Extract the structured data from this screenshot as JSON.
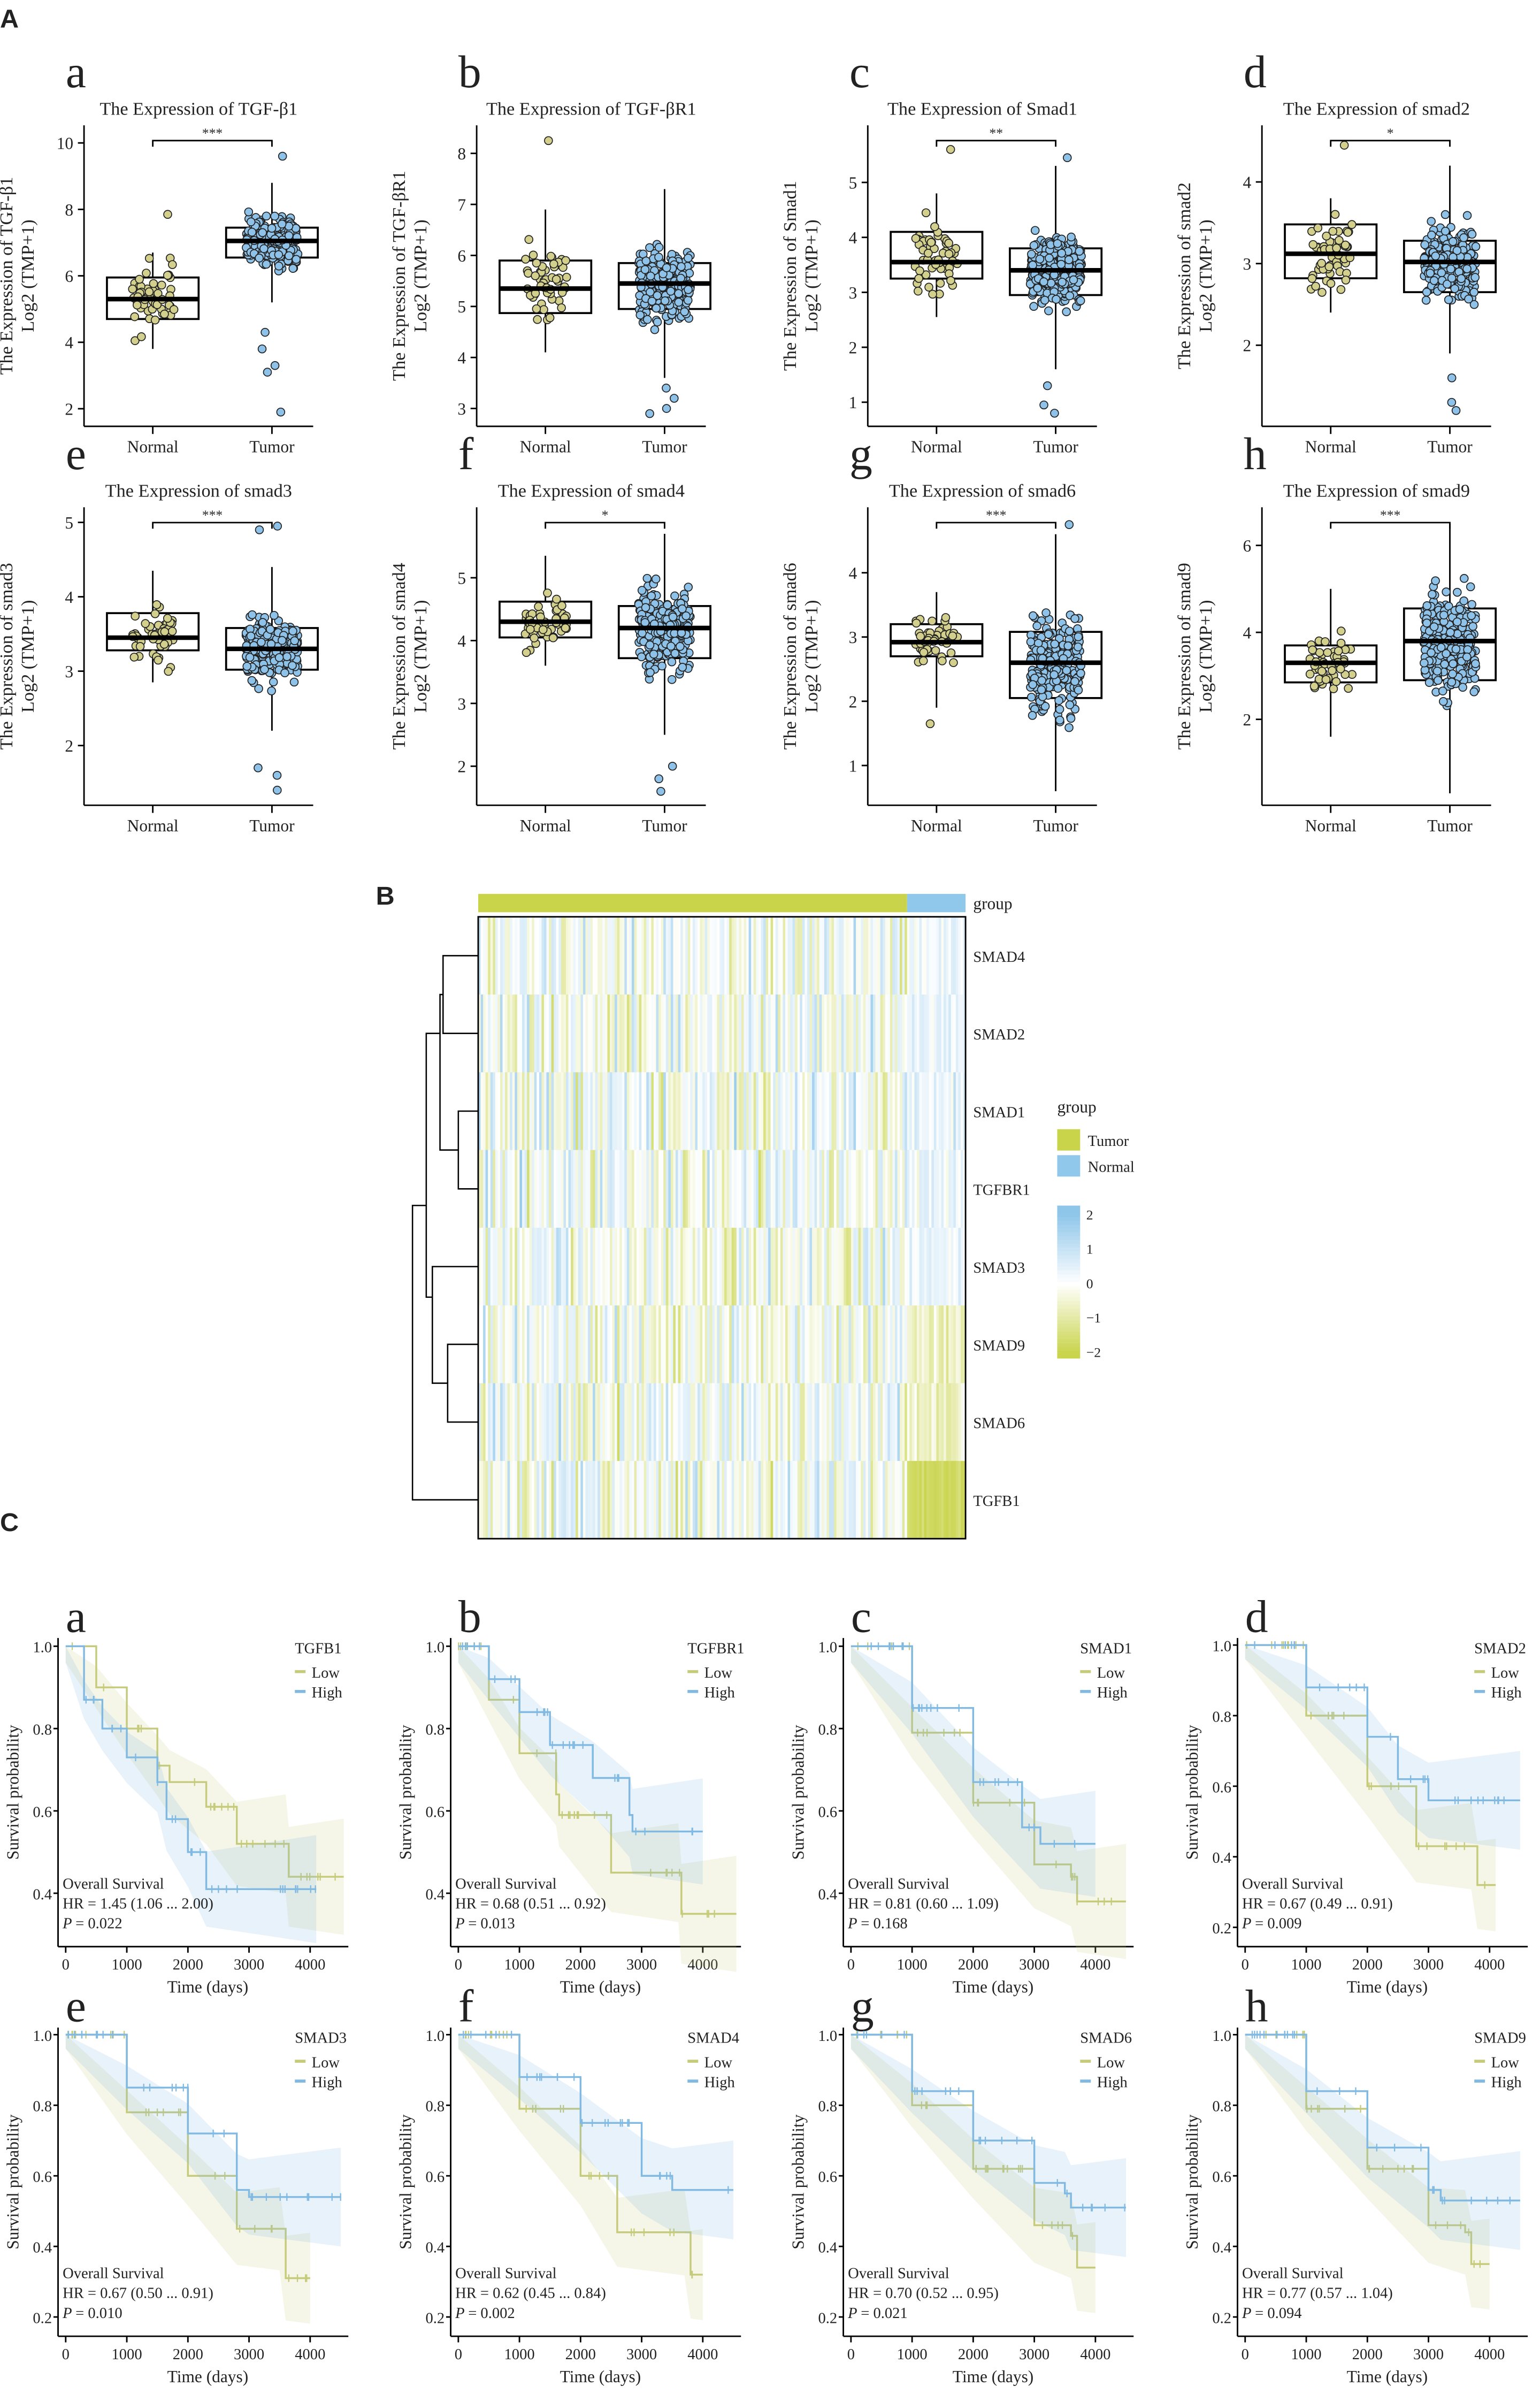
{
  "section_labels": {
    "A": "A",
    "B": "B",
    "C": "C"
  },
  "chart_data": [
    {
      "type": "box",
      "panel": "A",
      "categories": [
        "Normal",
        "Tumor"
      ],
      "colors": {
        "Normal": "#d2d08c",
        "Tumor": "#8ec2e8"
      },
      "ylabel_line1": "The  Expression  of",
      "ylabel_line2": "Log2 (TMP+1)",
      "plots": [
        {
          "letter": "a",
          "title": "The Expression of TGF-β1",
          "gene": "TGF-β1",
          "sig": "***",
          "yticks": [
            2,
            4,
            6,
            8,
            10
          ],
          "ylim": [
            1.7,
            10.3
          ],
          "normal": {
            "q1": 4.7,
            "median": 5.3,
            "q3": 5.95,
            "low": 3.8,
            "high": 6.7,
            "outliers": [
              7.85
            ]
          },
          "tumor": {
            "q1": 6.55,
            "median": 7.05,
            "q3": 7.45,
            "low": 5.2,
            "high": 8.8,
            "outliers": [
              1.9,
              3.1,
              3.3,
              3.8,
              4.3,
              9.6
            ]
          }
        },
        {
          "letter": "b",
          "title": "The Expression of TGF-βR1",
          "gene": "TGF-βR1",
          "sig": "",
          "yticks": [
            3,
            4,
            5,
            6,
            7,
            8
          ],
          "ylim": [
            2.8,
            8.4
          ],
          "normal": {
            "q1": 4.87,
            "median": 5.35,
            "q3": 5.9,
            "low": 4.1,
            "high": 6.9,
            "outliers": [
              8.25
            ]
          },
          "tumor": {
            "q1": 4.95,
            "median": 5.45,
            "q3": 5.85,
            "low": 3.6,
            "high": 7.3,
            "outliers": [
              2.9,
              3.0,
              3.2,
              3.4
            ]
          }
        },
        {
          "letter": "c",
          "title": "The Expression of Smad1",
          "gene": "Smad1",
          "sig": "**",
          "yticks": [
            1,
            2,
            3,
            4,
            5
          ],
          "ylim": [
            0.7,
            5.9
          ],
          "normal": {
            "q1": 3.25,
            "median": 3.55,
            "q3": 4.1,
            "low": 2.55,
            "high": 4.8,
            "outliers": [
              5.6
            ]
          },
          "tumor": {
            "q1": 2.95,
            "median": 3.4,
            "q3": 3.8,
            "low": 1.6,
            "high": 5.3,
            "outliers": [
              0.8,
              0.95,
              1.3,
              5.45
            ]
          }
        },
        {
          "letter": "d",
          "title": "The Expression of smad2",
          "gene": "smad2",
          "sig": "*",
          "yticks": [
            2,
            3,
            4
          ],
          "ylim": [
            1.1,
            4.6
          ],
          "normal": {
            "q1": 2.82,
            "median": 3.12,
            "q3": 3.48,
            "low": 2.4,
            "high": 3.8,
            "outliers": [
              4.45
            ]
          },
          "tumor": {
            "q1": 2.65,
            "median": 3.02,
            "q3": 3.28,
            "low": 1.9,
            "high": 4.2,
            "outliers": [
              1.2,
              1.3,
              1.6
            ]
          }
        },
        {
          "letter": "e",
          "title": "The Expression of smad3",
          "gene": "smad3",
          "sig": "***",
          "yticks": [
            2,
            3,
            4,
            5
          ],
          "ylim": [
            1.3,
            5.1
          ],
          "normal": {
            "q1": 3.28,
            "median": 3.45,
            "q3": 3.78,
            "low": 2.85,
            "high": 4.35,
            "outliers": []
          },
          "tumor": {
            "q1": 3.02,
            "median": 3.3,
            "q3": 3.58,
            "low": 2.2,
            "high": 4.4,
            "outliers": [
              1.4,
              1.6,
              1.7,
              4.9,
              4.95
            ]
          }
        },
        {
          "letter": "f",
          "title": "The Expression of smad4",
          "gene": "smad4",
          "sig": "*",
          "yticks": [
            2,
            3,
            4,
            5
          ],
          "ylim": [
            1.5,
            6.0
          ],
          "normal": {
            "q1": 4.05,
            "median": 4.3,
            "q3": 4.62,
            "low": 3.6,
            "high": 5.35,
            "outliers": []
          },
          "tumor": {
            "q1": 3.72,
            "median": 4.2,
            "q3": 4.55,
            "low": 2.5,
            "high": 5.7,
            "outliers": [
              1.6,
              1.8,
              2.0
            ]
          }
        },
        {
          "letter": "g",
          "title": "The Expression of smad6",
          "gene": "smad6",
          "sig": "***",
          "yticks": [
            1,
            2,
            3,
            4
          ],
          "ylim": [
            0.5,
            4.9
          ],
          "normal": {
            "q1": 2.7,
            "median": 2.92,
            "q3": 3.2,
            "low": 1.9,
            "high": 3.7,
            "outliers": [
              1.65
            ]
          },
          "tumor": {
            "q1": 2.05,
            "median": 2.6,
            "q3": 3.08,
            "low": 0.6,
            "high": 4.6,
            "outliers": [
              4.75
            ]
          }
        },
        {
          "letter": "h",
          "title": "The Expression of smad9",
          "gene": "smad9",
          "sig": "***",
          "yticks": [
            2,
            4,
            6
          ],
          "ylim": [
            0.2,
            6.7
          ],
          "normal": {
            "q1": 2.85,
            "median": 3.3,
            "q3": 3.7,
            "low": 1.6,
            "high": 5.0,
            "outliers": []
          },
          "tumor": {
            "q1": 2.9,
            "median": 3.8,
            "q3": 4.55,
            "low": 0.3,
            "high": 6.5,
            "outliers": []
          }
        }
      ]
    },
    {
      "type": "heatmap",
      "panel": "B",
      "rows": [
        "SMAD4",
        "SMAD2",
        "SMAD1",
        "TGFBR1",
        "SMAD3",
        "SMAD9",
        "SMAD6",
        "TGFB1"
      ],
      "group_label": "group",
      "legend_title": "group",
      "groups": [
        {
          "name": "Tumor",
          "color": "#c9d44b"
        },
        {
          "name": "Normal",
          "color": "#90c8ec"
        }
      ],
      "tumor_fraction": 0.88,
      "scale_ticks": [
        "2",
        "1",
        "0",
        "−1",
        "−2"
      ],
      "scale_range": [
        -2,
        2
      ],
      "scale_colors": {
        "low": "#c9d44b",
        "mid": "#ffffff",
        "high": "#8ec6ea"
      }
    },
    {
      "type": "line",
      "panel": "C",
      "xlabel": "Time (days)",
      "ylabel": "Survival probability",
      "xticks": [
        0,
        1000,
        2000,
        3000,
        4000
      ],
      "legend_items": [
        "Low",
        "High"
      ],
      "colors": {
        "Low": "#c6cb7c",
        "High": "#80b9e2"
      },
      "annotation_title": "Overall  Survival",
      "plots": [
        {
          "letter": "a",
          "gene": "TGFB1",
          "hr": "HR = 1.45  (1.06  ...  2.00)",
          "p": "= 0.022",
          "ylim": [
            0.3,
            1.02
          ],
          "yticks": [
            "0.4",
            "0.6",
            "0.8",
            "1.0"
          ],
          "low": [
            [
              0,
              1
            ],
            [
              500,
              0.9
            ],
            [
              1000,
              0.8
            ],
            [
              1500,
              0.71
            ],
            [
              1700,
              0.67
            ],
            [
              2300,
              0.61
            ],
            [
              2800,
              0.52
            ],
            [
              3600,
              0.52
            ],
            [
              3650,
              0.44
            ],
            [
              4550,
              0.44
            ]
          ],
          "high": [
            [
              0,
              1
            ],
            [
              300,
              0.87
            ],
            [
              600,
              0.8
            ],
            [
              1000,
              0.73
            ],
            [
              1500,
              0.67
            ],
            [
              1650,
              0.58
            ],
            [
              2000,
              0.5
            ],
            [
              2300,
              0.41
            ],
            [
              4100,
              0.41
            ]
          ]
        },
        {
          "letter": "b",
          "gene": "TGFBR1",
          "hr": "HR = 0.68  (0.51  ...  0.92)",
          "p": "= 0.013",
          "ylim": [
            0.3,
            1.02
          ],
          "yticks": [
            "0.4",
            "0.6",
            "0.8",
            "1.0"
          ],
          "low": [
            [
              0,
              1
            ],
            [
              500,
              0.87
            ],
            [
              1000,
              0.74
            ],
            [
              1600,
              0.64
            ],
            [
              1650,
              0.59
            ],
            [
              2500,
              0.45
            ],
            [
              3600,
              0.45
            ],
            [
              3650,
              0.35
            ],
            [
              4550,
              0.35
            ]
          ],
          "high": [
            [
              0,
              1
            ],
            [
              500,
              0.92
            ],
            [
              1000,
              0.84
            ],
            [
              1500,
              0.76
            ],
            [
              2200,
              0.68
            ],
            [
              2800,
              0.59
            ],
            [
              2850,
              0.55
            ],
            [
              4000,
              0.55
            ]
          ]
        },
        {
          "letter": "c",
          "gene": "SMAD1",
          "hr": "HR = 0.81  (0.60  ...  1.09)",
          "p": "= 0.168",
          "ylim": [
            0.3,
            1.02
          ],
          "yticks": [
            "0.4",
            "0.6",
            "0.8",
            "1.0"
          ],
          "low": [
            [
              0,
              1
            ],
            [
              1000,
              0.79
            ],
            [
              2000,
              0.62
            ],
            [
              3000,
              0.47
            ],
            [
              3600,
              0.44
            ],
            [
              3700,
              0.38
            ],
            [
              4500,
              0.38
            ]
          ],
          "high": [
            [
              0,
              1
            ],
            [
              1000,
              0.85
            ],
            [
              2000,
              0.67
            ],
            [
              2800,
              0.56
            ],
            [
              3100,
              0.52
            ],
            [
              4000,
              0.52
            ]
          ]
        },
        {
          "letter": "d",
          "gene": "SMAD2",
          "hr": "HR = 0.67  (0.49  ...  0.91)",
          "p": "= 0.009",
          "ylim": [
            0.18,
            1.02
          ],
          "yticks": [
            "0.2",
            "0.4",
            "0.6",
            "0.8",
            "1.0"
          ],
          "low": [
            [
              0,
              1
            ],
            [
              1000,
              0.8
            ],
            [
              2000,
              0.6
            ],
            [
              2800,
              0.43
            ],
            [
              3700,
              0.43
            ],
            [
              3800,
              0.32
            ],
            [
              4100,
              0.32
            ]
          ],
          "high": [
            [
              0,
              1
            ],
            [
              1000,
              0.88
            ],
            [
              2000,
              0.74
            ],
            [
              2500,
              0.62
            ],
            [
              3000,
              0.56
            ],
            [
              4500,
              0.56
            ]
          ]
        },
        {
          "letter": "e",
          "gene": "SMAD3",
          "hr": "HR = 0.67  (0.50  ...  0.91)",
          "p": "= 0.010",
          "ylim": [
            0.18,
            1.02
          ],
          "yticks": [
            "0.2",
            "0.4",
            "0.6",
            "0.8",
            "1.0"
          ],
          "low": [
            [
              0,
              1
            ],
            [
              1000,
              0.78
            ],
            [
              2000,
              0.6
            ],
            [
              2800,
              0.45
            ],
            [
              3500,
              0.45
            ],
            [
              3600,
              0.31
            ],
            [
              4000,
              0.31
            ]
          ],
          "high": [
            [
              0,
              1
            ],
            [
              1000,
              0.85
            ],
            [
              2000,
              0.72
            ],
            [
              2800,
              0.56
            ],
            [
              3000,
              0.54
            ],
            [
              4500,
              0.54
            ]
          ]
        },
        {
          "letter": "f",
          "gene": "SMAD4",
          "hr": "HR = 0.62  (0.45  ...  0.84)",
          "p": "= 0.002",
          "ylim": [
            0.18,
            1.02
          ],
          "yticks": [
            "0.2",
            "0.4",
            "0.6",
            "0.8",
            "1.0"
          ],
          "low": [
            [
              0,
              1
            ],
            [
              1000,
              0.79
            ],
            [
              2000,
              0.6
            ],
            [
              2600,
              0.44
            ],
            [
              3700,
              0.44
            ],
            [
              3800,
              0.32
            ],
            [
              4000,
              0.32
            ]
          ],
          "high": [
            [
              0,
              1
            ],
            [
              1000,
              0.88
            ],
            [
              2000,
              0.75
            ],
            [
              3000,
              0.6
            ],
            [
              3500,
              0.56
            ],
            [
              4500,
              0.56
            ]
          ]
        },
        {
          "letter": "g",
          "gene": "SMAD6",
          "hr": "HR = 0.70  (0.52  ...  0.95)",
          "p": "= 0.021",
          "ylim": [
            0.18,
            1.02
          ],
          "yticks": [
            "0.2",
            "0.4",
            "0.6",
            "0.8",
            "1.0"
          ],
          "low": [
            [
              0,
              1
            ],
            [
              1000,
              0.8
            ],
            [
              2000,
              0.62
            ],
            [
              3000,
              0.46
            ],
            [
              3600,
              0.43
            ],
            [
              3700,
              0.34
            ],
            [
              4000,
              0.34
            ]
          ],
          "high": [
            [
              0,
              1
            ],
            [
              1000,
              0.84
            ],
            [
              2000,
              0.7
            ],
            [
              3000,
              0.58
            ],
            [
              3500,
              0.55
            ],
            [
              3600,
              0.51
            ],
            [
              4500,
              0.51
            ]
          ]
        },
        {
          "letter": "h",
          "gene": "SMAD9",
          "hr": "HR = 0.77  (0.57  ...  1.04)",
          "p": "= 0.094",
          "ylim": [
            0.18,
            1.02
          ],
          "yticks": [
            "0.2",
            "0.4",
            "0.6",
            "0.8",
            "1.0"
          ],
          "low": [
            [
              0,
              1
            ],
            [
              1000,
              0.79
            ],
            [
              2000,
              0.62
            ],
            [
              3000,
              0.46
            ],
            [
              3600,
              0.44
            ],
            [
              3700,
              0.35
            ],
            [
              4000,
              0.35
            ]
          ],
          "high": [
            [
              0,
              1
            ],
            [
              1000,
              0.84
            ],
            [
              2000,
              0.68
            ],
            [
              3000,
              0.56
            ],
            [
              3200,
              0.53
            ],
            [
              4500,
              0.53
            ]
          ]
        }
      ]
    }
  ]
}
